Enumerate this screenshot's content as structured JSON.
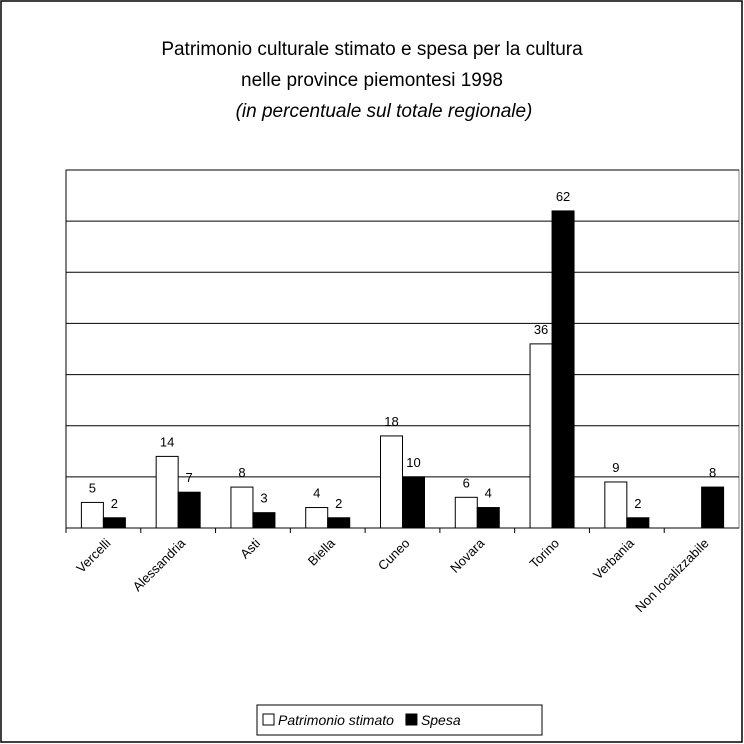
{
  "chart_data": {
    "type": "bar",
    "title": [
      "Patrimonio culturale stimato e spesa per la cultura",
      "nelle province piemontesi 1998"
    ],
    "subtitle": "(in percentuale sul totale regionale)",
    "categories": [
      "Vercelli",
      "Alessandria",
      "Asti",
      "Biella",
      "Cuneo",
      "Novara",
      "Torino",
      "Verbania",
      "Non localizzabile"
    ],
    "series": [
      {
        "name": "Patrimonio stimato",
        "color": "#ffffff",
        "values": [
          5,
          14,
          8,
          4,
          18,
          6,
          36,
          9,
          null
        ]
      },
      {
        "name": "Spesa",
        "color": "#000000",
        "values": [
          2,
          7,
          3,
          2,
          10,
          4,
          62,
          2,
          8
        ]
      }
    ],
    "ylim": [
      0,
      70
    ],
    "yticks": [
      0,
      10,
      20,
      30,
      40,
      50,
      60,
      70
    ],
    "grid": true,
    "legend": "bottom"
  }
}
